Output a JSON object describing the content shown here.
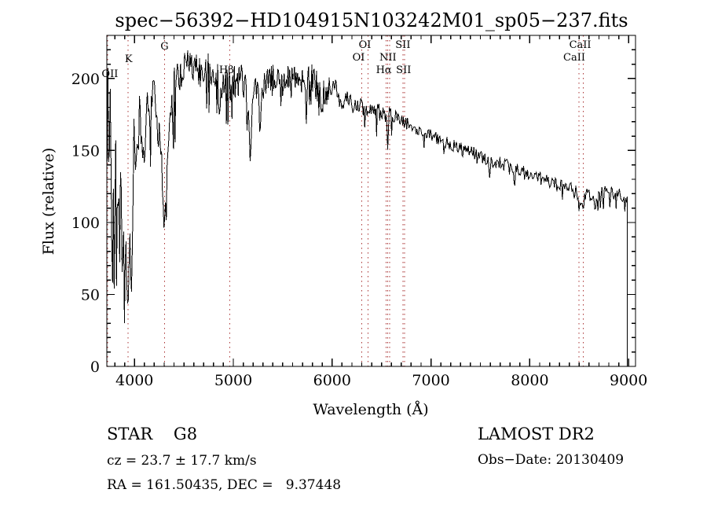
{
  "chart_data": {
    "type": "line",
    "title": "spec−56392−HD104915N103242M01_sp05−237.fits",
    "xlabel": "Wavelength (Å)",
    "ylabel": "Flux (relative)",
    "xlim": [
      3720,
      9070
    ],
    "ylim": [
      0,
      230
    ],
    "x_ticks": [
      4000,
      5000,
      6000,
      7000,
      8000,
      9000
    ],
    "y_ticks": [
      0,
      50,
      100,
      150,
      200
    ],
    "x_minor_step": 100,
    "y_minor_step": 10,
    "grid": false,
    "legend": "none",
    "line_color": "#000000",
    "marker_line_color": "#aa3333",
    "noise_seed": 42,
    "sample_step_angstrom": 8,
    "flux_clip": [
      30,
      227
    ],
    "cutoff": {
      "wavelength": 8988,
      "drop_to_flux": 0
    },
    "continuum_points": [
      [
        3720,
        120
      ],
      [
        3730,
        195
      ],
      [
        3742,
        140
      ],
      [
        3755,
        178
      ],
      [
        3768,
        112
      ],
      [
        3781,
        168
      ],
      [
        3794,
        96
      ],
      [
        3807,
        152
      ],
      [
        3820,
        78
      ],
      [
        3833,
        138
      ],
      [
        3846,
        70
      ],
      [
        3859,
        128
      ],
      [
        3872,
        62
      ],
      [
        3885,
        118
      ],
      [
        3898,
        58
      ],
      [
        3911,
        108
      ],
      [
        3924,
        68
      ],
      [
        3937,
        60
      ],
      [
        3950,
        115
      ],
      [
        3963,
        70
      ],
      [
        3976,
        105
      ],
      [
        3990,
        135
      ],
      [
        4010,
        150
      ],
      [
        4035,
        168
      ],
      [
        4060,
        176
      ],
      [
        4085,
        162
      ],
      [
        4110,
        178
      ],
      [
        4135,
        188
      ],
      [
        4160,
        184
      ],
      [
        4185,
        186
      ],
      [
        4210,
        180
      ],
      [
        4235,
        172
      ],
      [
        4260,
        150
      ],
      [
        4285,
        122
      ],
      [
        4305,
        112
      ],
      [
        4325,
        142
      ],
      [
        4345,
        165
      ],
      [
        4370,
        185
      ],
      [
        4400,
        196
      ],
      [
        4440,
        204
      ],
      [
        4480,
        207
      ],
      [
        4520,
        206
      ],
      [
        4560,
        208
      ],
      [
        4600,
        205
      ],
      [
        4640,
        207
      ],
      [
        4680,
        204
      ],
      [
        4720,
        206
      ],
      [
        4760,
        204
      ],
      [
        4800,
        207
      ],
      [
        4830,
        202
      ],
      [
        4861,
        192
      ],
      [
        4895,
        200
      ],
      [
        4930,
        197
      ],
      [
        4965,
        196
      ],
      [
        5000,
        197
      ],
      [
        5040,
        199
      ],
      [
        5080,
        199
      ],
      [
        5120,
        196
      ],
      [
        5172,
        172
      ],
      [
        5215,
        192
      ],
      [
        5260,
        195
      ],
      [
        5310,
        196
      ],
      [
        5360,
        197
      ],
      [
        5410,
        199
      ],
      [
        5460,
        197
      ],
      [
        5510,
        199
      ],
      [
        5560,
        201
      ],
      [
        5610,
        199
      ],
      [
        5660,
        201
      ],
      [
        5710,
        200
      ],
      [
        5760,
        201
      ],
      [
        5810,
        199
      ],
      [
        5860,
        194
      ],
      [
        5893,
        184
      ],
      [
        5930,
        192
      ],
      [
        5970,
        191
      ],
      [
        6010,
        190
      ],
      [
        6060,
        187
      ],
      [
        6110,
        185
      ],
      [
        6160,
        184
      ],
      [
        6210,
        183
      ],
      [
        6260,
        181
      ],
      [
        6310,
        180
      ],
      [
        6360,
        180
      ],
      [
        6410,
        180
      ],
      [
        6460,
        178
      ],
      [
        6510,
        177
      ],
      [
        6560,
        172
      ],
      [
        6610,
        175
      ],
      [
        6660,
        172
      ],
      [
        6720,
        170
      ],
      [
        6780,
        168
      ],
      [
        6840,
        166
      ],
      [
        6900,
        164
      ],
      [
        6960,
        162
      ],
      [
        7020,
        160
      ],
      [
        7080,
        158
      ],
      [
        7140,
        156
      ],
      [
        7200,
        154
      ],
      [
        7260,
        152
      ],
      [
        7320,
        151
      ],
      [
        7380,
        149
      ],
      [
        7440,
        148
      ],
      [
        7500,
        146
      ],
      [
        7560,
        143
      ],
      [
        7620,
        141
      ],
      [
        7680,
        142
      ],
      [
        7740,
        141
      ],
      [
        7800,
        139
      ],
      [
        7860,
        137
      ],
      [
        7920,
        136
      ],
      [
        7980,
        134
      ],
      [
        8040,
        133
      ],
      [
        8100,
        132
      ],
      [
        8160,
        130
      ],
      [
        8220,
        128
      ],
      [
        8280,
        127
      ],
      [
        8340,
        126
      ],
      [
        8400,
        125
      ],
      [
        8460,
        122
      ],
      [
        8520,
        115
      ],
      [
        8580,
        120
      ],
      [
        8640,
        115
      ],
      [
        8700,
        120
      ],
      [
        8760,
        121
      ],
      [
        8820,
        121
      ],
      [
        8880,
        120
      ],
      [
        8940,
        119
      ],
      [
        8988,
        118
      ]
    ],
    "noise_segments": [
      [
        3720,
        4000,
        36
      ],
      [
        4000,
        4330,
        20
      ],
      [
        4330,
        4460,
        15
      ],
      [
        4460,
        5020,
        13
      ],
      [
        5020,
        6060,
        11
      ],
      [
        6060,
        6620,
        7
      ],
      [
        6620,
        7450,
        4.5
      ],
      [
        7450,
        8450,
        4
      ],
      [
        8450,
        8988,
        4.5
      ]
    ],
    "absorption_features": [
      {
        "wavelength": 3933,
        "min_flux": 38,
        "width": 26
      },
      {
        "wavelength": 3970,
        "min_flux": 52,
        "width": 18
      },
      {
        "wavelength": 4101,
        "min_flux": 132,
        "width": 22
      },
      {
        "wavelength": 4304,
        "min_flux": 102,
        "width": 26
      },
      {
        "wavelength": 4340,
        "min_flux": 146,
        "width": 16
      },
      {
        "wavelength": 4861,
        "min_flux": 166,
        "width": 14
      },
      {
        "wavelength": 5172,
        "min_flux": 135,
        "width": 20
      },
      {
        "wavelength": 5893,
        "min_flux": 172,
        "width": 13
      },
      {
        "wavelength": 6563,
        "min_flux": 146,
        "width": 12
      },
      {
        "wavelength": 6870,
        "min_flux": 157,
        "width": 10
      },
      {
        "wavelength": 7594,
        "min_flux": 131,
        "width": 16
      },
      {
        "wavelength": 8205,
        "min_flux": 121,
        "width": 10
      },
      {
        "wavelength": 8498,
        "min_flux": 108,
        "width": 10
      },
      {
        "wavelength": 8542,
        "min_flux": 104,
        "width": 12
      },
      {
        "wavelength": 8662,
        "min_flux": 103,
        "width": 12
      }
    ],
    "spectral_line_markers": [
      3727,
      3933,
      4304,
      4963,
      6300,
      6363,
      6548,
      6563,
      6583,
      6716,
      6731,
      8498,
      8542
    ],
    "spectral_line_labels": [
      {
        "text": "OII",
        "wavelength": 3727,
        "y": 98,
        "dx": 3
      },
      {
        "text": "K",
        "wavelength": 3933,
        "y": 79,
        "dx": 1
      },
      {
        "text": "G",
        "wavelength": 4304,
        "y": 63,
        "dx": 0
      },
      {
        "text": "Hβ",
        "wavelength": 4963,
        "y": 93,
        "dx": -4
      },
      {
        "text": "OI",
        "wavelength": 6363,
        "y": 61,
        "dx": -4
      },
      {
        "text": "SII",
        "wavelength": 6716,
        "y": 61,
        "dx": 0
      },
      {
        "text": "OI",
        "wavelength": 6300,
        "y": 77,
        "dx": -4
      },
      {
        "text": "NII",
        "wavelength": 6565,
        "y": 77,
        "dx": 0
      },
      {
        "text": "Hα",
        "wavelength": 6563,
        "y": 93,
        "dx": -5
      },
      {
        "text": "SII",
        "wavelength": 6731,
        "y": 93,
        "dx": -1
      },
      {
        "text": "CaII",
        "wavelength": 8542,
        "y": 61,
        "dx": -4
      },
      {
        "text": "CaII",
        "wavelength": 8498,
        "y": 77,
        "dx": -6
      }
    ]
  },
  "footer": {
    "left": {
      "class_line": "STAR    G8",
      "cz_line": "cz = 23.7 ± 17.7 km/s",
      "radec_line": "RA = 161.50435, DEC =   9.37448"
    },
    "right": {
      "survey": "LAMOST DR2",
      "obs_date": "Obs−Date: 20130409"
    }
  }
}
